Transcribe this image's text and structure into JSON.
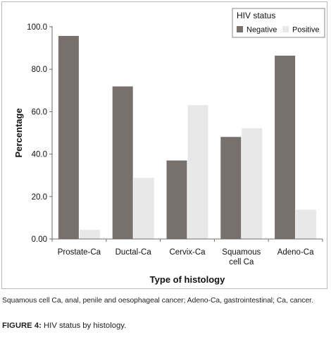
{
  "chart_data": {
    "type": "bar",
    "title": "",
    "xlabel": "Type of histology",
    "ylabel": "Percentage",
    "ylim": [
      0,
      100
    ],
    "yticks": [
      "0.00",
      "20.0",
      "40.0",
      "60.0",
      "80.0",
      "100.0"
    ],
    "grid": false,
    "legend": {
      "title": "HIV status",
      "position": "top-right"
    },
    "categories": [
      [
        "Prostate-Ca"
      ],
      [
        "Ductal-Ca"
      ],
      [
        "Cervix-Ca"
      ],
      [
        "Squamous",
        "cell Ca"
      ],
      [
        "Adeno-Ca"
      ]
    ],
    "series": [
      {
        "name": "Negative",
        "color": "#77706c",
        "values": [
          95.7,
          71.9,
          37.0,
          48.1,
          86.4
        ]
      },
      {
        "name": "Positive",
        "color": "#e8e8e8",
        "values": [
          4.3,
          28.8,
          63.1,
          52.2,
          13.8
        ]
      }
    ]
  },
  "footnote": "Squamous cell Ca, anal, penile and oesophageal cancer; Adeno-Ca, gastrointestinal; Ca, cancer.",
  "caption": {
    "label": "FIGURE 4:",
    "text": "HIV status by histology."
  }
}
